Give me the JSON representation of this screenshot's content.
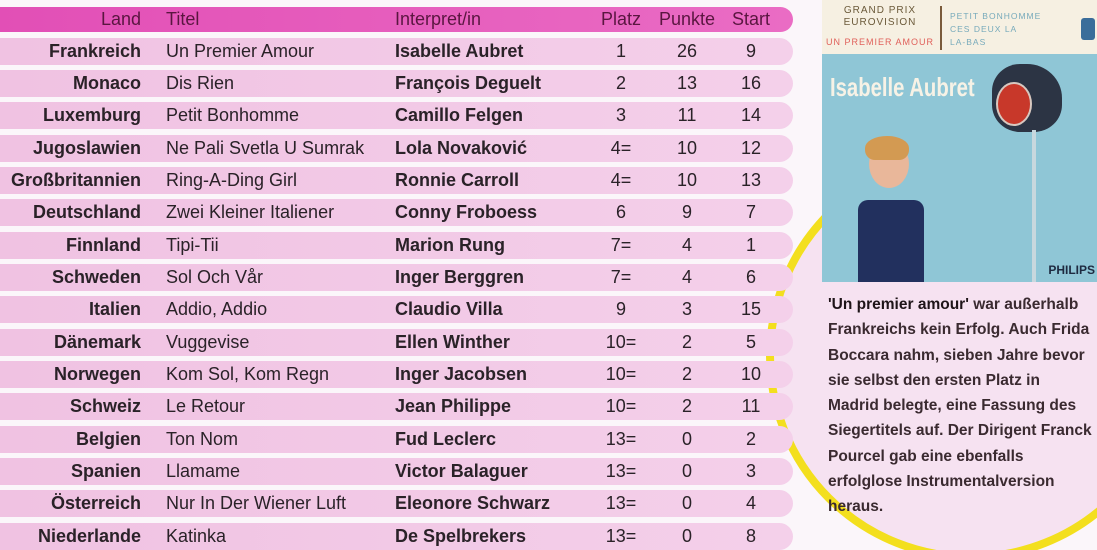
{
  "table": {
    "headers": {
      "land": "Land",
      "titel": "Titel",
      "interpret": "Interpret/in",
      "platz": "Platz",
      "punkte": "Punkte",
      "start": "Start"
    },
    "rows": [
      {
        "land": "Frankreich",
        "titel": "Un Premier Amour",
        "interpret": "Isabelle Aubret",
        "platz": "1",
        "punkte": "26",
        "start": "9"
      },
      {
        "land": "Monaco",
        "titel": "Dis Rien",
        "interpret": "François Deguelt",
        "platz": "2",
        "punkte": "13",
        "start": "16"
      },
      {
        "land": "Luxemburg",
        "titel": "Petit Bonhomme",
        "interpret": "Camillo Felgen",
        "platz": "3",
        "punkte": "11",
        "start": "14"
      },
      {
        "land": "Jugoslawien",
        "titel": "Ne Pali Svetla U Sumrak",
        "interpret": "Lola Novaković",
        "platz": "4=",
        "punkte": "10",
        "start": "12"
      },
      {
        "land": "Großbritannien",
        "titel": "Ring-A-Ding Girl",
        "interpret": "Ronnie Carroll",
        "platz": "4=",
        "punkte": "10",
        "start": "13"
      },
      {
        "land": "Deutschland",
        "titel": "Zwei Kleiner Italiener",
        "interpret": "Conny Froboess",
        "platz": "6",
        "punkte": "9",
        "start": "7"
      },
      {
        "land": "Finnland",
        "titel": "Tipi-Tii",
        "interpret": "Marion Rung",
        "platz": "7=",
        "punkte": "4",
        "start": "1"
      },
      {
        "land": "Schweden",
        "titel": "Sol Och Vår",
        "interpret": "Inger Berggren",
        "platz": "7=",
        "punkte": "4",
        "start": "6"
      },
      {
        "land": "Italien",
        "titel": "Addio, Addio",
        "interpret": "Claudio Villa",
        "platz": "9",
        "punkte": "3",
        "start": "15"
      },
      {
        "land": "Dänemark",
        "titel": "Vuggevise",
        "interpret": "Ellen Winther",
        "platz": "10=",
        "punkte": "2",
        "start": "5"
      },
      {
        "land": "Norwegen",
        "titel": "Kom Sol, Kom Regn",
        "interpret": "Inger Jacobsen",
        "platz": "10=",
        "punkte": "2",
        "start": "10"
      },
      {
        "land": "Schweiz",
        "titel": "Le Retour",
        "interpret": "Jean Philippe",
        "platz": "10=",
        "punkte": "2",
        "start": "11"
      },
      {
        "land": "Belgien",
        "titel": "Ton Nom",
        "interpret": "Fud Leclerc",
        "platz": "13=",
        "punkte": "0",
        "start": "2"
      },
      {
        "land": "Spanien",
        "titel": "Llamame",
        "interpret": "Victor Balaguer",
        "platz": "13=",
        "punkte": "0",
        "start": "3"
      },
      {
        "land": "Österreich",
        "titel": "Nur In Der Wiener Luft",
        "interpret": "Eleonore Schwarz",
        "platz": "13=",
        "punkte": "0",
        "start": "4"
      },
      {
        "land": "Niederlande",
        "titel": "Katinka",
        "interpret": "De Spelbrekers",
        "platz": "13=",
        "punkte": "0",
        "start": "8"
      }
    ]
  },
  "cover": {
    "line1": "GRAND PRIX",
    "line2": "EUROVISION",
    "title": "UN PREMIER AMOUR",
    "tracks": [
      "PETIT BONHOMME",
      "CES DEUX LA",
      "LA-BAS"
    ],
    "artist": "Isabelle Aubret",
    "label": "PHILIPS"
  },
  "caption": {
    "bold": "'Un premier amour'",
    "text": " war au­ßerhalb Frankreichs kein Erfolg. Auch Frida Boccara nahm, sieben Jahre bevor sie selbst den ersten Platz in Madrid belegte, eine Fassung des Siegertitels auf. Der Dirigent Franck Pourcel gab eine ebenfalls erfolglose Instrumentalversion heraus."
  },
  "colors": {
    "header": "#e24fb6",
    "row": "#f0c2e2",
    "accent_circle": "#f3df1e"
  }
}
